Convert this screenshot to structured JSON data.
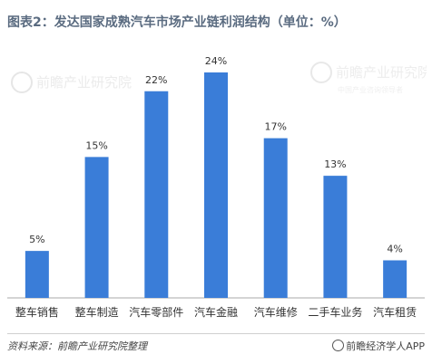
{
  "title": "图表2：发达国家成熟汽车市场产业链利润结构（单位：%）",
  "footer": {
    "source": "资料来源：前瞻产业研究院整理",
    "brand": "前瞻经济学人APP"
  },
  "watermark": {
    "text_main": "前瞻产业研究院",
    "text_sub": "中国产业咨询领导者"
  },
  "colors": {
    "bar": "#3a7dd8",
    "title": "#5a6b80",
    "axis": "#aaaaaa"
  },
  "chart_data": {
    "type": "bar",
    "categories": [
      "整车销售",
      "整车制造",
      "汽车零部件",
      "汽车金融",
      "汽车维修",
      "二手车业务",
      "汽车租赁"
    ],
    "values": [
      5,
      15,
      22,
      24,
      17,
      13,
      4
    ],
    "value_labels": [
      "5%",
      "15%",
      "22%",
      "24%",
      "17%",
      "13%",
      "4%"
    ],
    "title": "图表2：发达国家成熟汽车市场产业链利润结构（单位：%）",
    "xlabel": "",
    "ylabel": "",
    "ylim": [
      0,
      24
    ],
    "grid": false,
    "legend": "none"
  }
}
